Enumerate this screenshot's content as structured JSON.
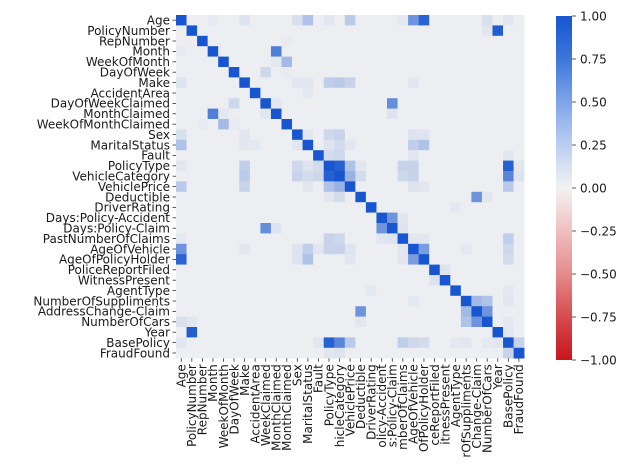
{
  "chart_data": {
    "type": "heatmap",
    "title": "",
    "xlabel": "",
    "ylabel": "",
    "labels": [
      "Age",
      "PolicyNumber",
      "RepNumber",
      "Month",
      "WeekOfMonth",
      "DayOfWeek",
      "Make",
      "AccidentArea",
      "DayOfWeekClaimed",
      "MonthClaimed",
      "WeekOfMonthClaimed",
      "Sex",
      "MaritalStatus",
      "Fault",
      "PolicyType",
      "VehicleCategory",
      "VehiclePrice",
      "Deductible",
      "DriverRating",
      "Days:Policy-Accident",
      "Days:Policy-Claim",
      "PastNumberOfClaims",
      "AgeOfVehicle",
      "AgeOfPolicyHolder",
      "PoliceReportFiled",
      "WitnessPresent",
      "AgentType",
      "NumberOfSuppliments",
      "AddressChange-Claim",
      "NumberOfCars",
      "Year",
      "BasePolicy",
      "FraudFound"
    ],
    "x_tick_labels": [
      "Age",
      "PolicyNumber",
      "RepNumber",
      "Month",
      "WeekOfMonth",
      "DayOfWeek",
      "Make",
      "AccidentArea",
      "WeekClaimed",
      "MonthClaimed",
      "MonthClaimed",
      "Sex",
      "MaritalStatus",
      "Fault",
      "PolicyType",
      "hicleCategory",
      "VehiclePrice",
      "Deductible",
      "DriverRating",
      "olicy-Accident",
      "s:Policy-Claim",
      "mberOfClaims",
      "AgeOfVehicle",
      "OfPolicyHolder",
      "ceReportFiled",
      "itnessPresent",
      "AgentType",
      "rOfSuppliments",
      "Change-Claim",
      "NumberOfCars",
      "Year",
      "BasePolicy",
      "FraudFound"
    ],
    "colorbar": {
      "range": [
        -1.0,
        1.0
      ],
      "ticks": [
        "1.00",
        "0.75",
        "0.50",
        "0.25",
        "0.00",
        "−0.25",
        "−0.50",
        "−0.75",
        "−1.00"
      ],
      "high_color": "#1756d0",
      "mid_color": "#f2f2f2",
      "low_color": "#c8161d"
    },
    "correlations": [
      {
        "a": 0,
        "b": 23,
        "value": 0.9
      },
      {
        "a": 0,
        "b": 22,
        "value": 0.55
      },
      {
        "a": 0,
        "b": 12,
        "value": 0.25
      },
      {
        "a": 0,
        "b": 16,
        "value": 0.2
      },
      {
        "a": 0,
        "b": 29,
        "value": 0.08
      },
      {
        "a": 1,
        "b": 30,
        "value": 0.94
      },
      {
        "a": 1,
        "b": 29,
        "value": 0.05
      },
      {
        "a": 3,
        "b": 9,
        "value": 0.7
      },
      {
        "a": 4,
        "b": 10,
        "value": 0.3
      },
      {
        "a": 5,
        "b": 8,
        "value": 0.12
      },
      {
        "a": 8,
        "b": 20,
        "value": 0.6
      },
      {
        "a": 8,
        "b": 9,
        "value": 0.05
      },
      {
        "a": 12,
        "b": 23,
        "value": 0.25
      },
      {
        "a": 12,
        "b": 22,
        "value": 0.18
      },
      {
        "a": 14,
        "b": 15,
        "value": 0.92
      },
      {
        "a": 14,
        "b": 31,
        "value": 0.92
      },
      {
        "a": 15,
        "b": 31,
        "value": 0.65
      },
      {
        "a": 15,
        "b": 16,
        "value": 0.35
      },
      {
        "a": 14,
        "b": 16,
        "value": 0.25
      },
      {
        "a": 6,
        "b": 14,
        "value": 0.18
      },
      {
        "a": 6,
        "b": 15,
        "value": 0.2
      },
      {
        "a": 6,
        "b": 16,
        "value": 0.15
      },
      {
        "a": 11,
        "b": 14,
        "value": 0.12
      },
      {
        "a": 11,
        "b": 15,
        "value": 0.15
      },
      {
        "a": 12,
        "b": 15,
        "value": 0.1
      },
      {
        "a": 13,
        "b": 14,
        "value": 0.1
      },
      {
        "a": 13,
        "b": 15,
        "value": 0.12
      },
      {
        "a": 14,
        "b": 21,
        "value": 0.15
      },
      {
        "a": 15,
        "b": 21,
        "value": 0.12
      },
      {
        "a": 14,
        "b": 22,
        "value": 0.15
      },
      {
        "a": 15,
        "b": 22,
        "value": 0.15
      },
      {
        "a": 15,
        "b": 17,
        "value": 0.1
      },
      {
        "a": 16,
        "b": 31,
        "value": 0.2
      },
      {
        "a": 17,
        "b": 28,
        "value": 0.55
      },
      {
        "a": 19,
        "b": 20,
        "value": 0.55
      },
      {
        "a": 21,
        "b": 31,
        "value": 0.18
      },
      {
        "a": 22,
        "b": 23,
        "value": 0.5
      },
      {
        "a": 22,
        "b": 31,
        "value": 0.12
      },
      {
        "a": 23,
        "b": 31,
        "value": 0.1
      },
      {
        "a": 27,
        "b": 28,
        "value": 0.3
      },
      {
        "a": 27,
        "b": 29,
        "value": 0.25
      },
      {
        "a": 28,
        "b": 29,
        "value": 0.55
      },
      {
        "a": 31,
        "b": 32,
        "value": 0.15
      },
      {
        "a": 0,
        "b": 3,
        "value": 0.03
      },
      {
        "a": 0,
        "b": 6,
        "value": 0.06
      },
      {
        "a": 0,
        "b": 11,
        "value": 0.08
      },
      {
        "a": 0,
        "b": 14,
        "value": 0.05
      },
      {
        "a": 0,
        "b": 31,
        "value": 0.05
      },
      {
        "a": 2,
        "b": 10,
        "value": 0.03
      },
      {
        "a": 4,
        "b": 9,
        "value": 0.04
      },
      {
        "a": 5,
        "b": 10,
        "value": 0.03
      },
      {
        "a": 6,
        "b": 11,
        "value": 0.05
      },
      {
        "a": 6,
        "b": 12,
        "value": 0.05
      },
      {
        "a": 6,
        "b": 22,
        "value": 0.05
      },
      {
        "a": 7,
        "b": 12,
        "value": 0.04
      },
      {
        "a": 9,
        "b": 20,
        "value": 0.06
      },
      {
        "a": 11,
        "b": 12,
        "value": 0.05
      },
      {
        "a": 11,
        "b": 22,
        "value": 0.06
      },
      {
        "a": 11,
        "b": 23,
        "value": 0.06
      },
      {
        "a": 12,
        "b": 14,
        "value": 0.06
      },
      {
        "a": 13,
        "b": 22,
        "value": 0.05
      },
      {
        "a": 13,
        "b": 31,
        "value": 0.05
      },
      {
        "a": 14,
        "b": 17,
        "value": 0.05
      },
      {
        "a": 16,
        "b": 22,
        "value": 0.06
      },
      {
        "a": 16,
        "b": 23,
        "value": 0.05
      },
      {
        "a": 17,
        "b": 29,
        "value": 0.05
      },
      {
        "a": 18,
        "b": 26,
        "value": 0.04
      },
      {
        "a": 19,
        "b": 21,
        "value": 0.05
      },
      {
        "a": 20,
        "b": 21,
        "value": 0.06
      },
      {
        "a": 21,
        "b": 22,
        "value": 0.05
      },
      {
        "a": 21,
        "b": 23,
        "value": 0.05
      },
      {
        "a": 22,
        "b": 27,
        "value": 0.04
      },
      {
        "a": 24,
        "b": 25,
        "value": 0.06
      },
      {
        "a": 26,
        "b": 31,
        "value": 0.04
      },
      {
        "a": 27,
        "b": 31,
        "value": 0.05
      },
      {
        "a": 29,
        "b": 31,
        "value": 0.04
      },
      {
        "a": 30,
        "b": 31,
        "value": 0.05
      },
      {
        "a": 14,
        "b": 32,
        "value": 0.05
      },
      {
        "a": 15,
        "b": 32,
        "value": 0.06
      },
      {
        "a": 12,
        "b": 16,
        "value": 0.05
      },
      {
        "a": 0,
        "b": 21,
        "value": 0.04
      }
    ]
  }
}
